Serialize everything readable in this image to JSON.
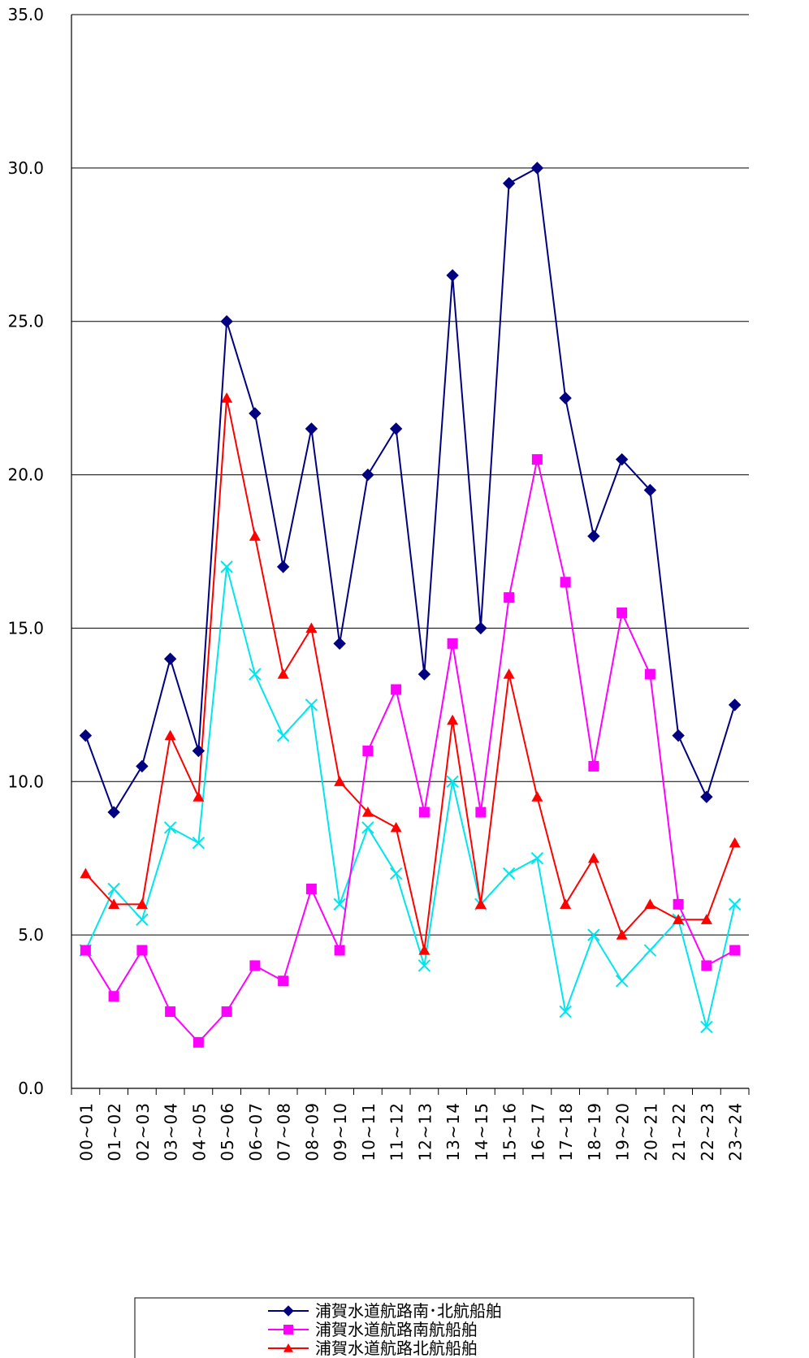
{
  "chart_data": {
    "type": "line",
    "title": "",
    "xlabel": "",
    "ylabel": "",
    "ylim": [
      0,
      35
    ],
    "ytick_step": 5,
    "grid": "horizontal",
    "legend_position": "bottom",
    "categories": [
      "00~01",
      "01~02",
      "02~03",
      "03~04",
      "04~05",
      "05~06",
      "06~07",
      "07~08",
      "08~09",
      "09~10",
      "10~11",
      "11~12",
      "12~13",
      "13~14",
      "14~15",
      "15~16",
      "16~17",
      "17~18",
      "18~19",
      "19~20",
      "20~21",
      "21~22",
      "22~23",
      "23~24"
    ],
    "series": [
      {
        "name": "浦賀水道航路南･北航船舶",
        "color": "#000080",
        "marker": "diamond",
        "values": [
          11.5,
          9.0,
          10.5,
          14.0,
          11.0,
          25.0,
          22.0,
          17.0,
          21.5,
          14.5,
          20.0,
          21.5,
          13.5,
          26.5,
          15.0,
          29.5,
          30.0,
          22.5,
          18.0,
          20.5,
          19.5,
          11.5,
          9.5,
          12.5
        ]
      },
      {
        "name": "浦賀水道航路南航船舶",
        "color": "#ff00ff",
        "marker": "square",
        "values": [
          4.5,
          3.0,
          4.5,
          2.5,
          1.5,
          2.5,
          4.0,
          3.5,
          6.5,
          4.5,
          11.0,
          13.0,
          9.0,
          14.5,
          9.0,
          16.0,
          20.5,
          16.5,
          10.5,
          15.5,
          13.5,
          6.0,
          4.0,
          4.5
        ]
      },
      {
        "name": "浦賀水道航路北航船舶",
        "color": "#ff0000",
        "marker": "triangle",
        "values": [
          7.0,
          6.0,
          6.0,
          11.5,
          9.5,
          22.5,
          18.0,
          13.5,
          15.0,
          10.0,
          9.0,
          8.5,
          4.5,
          12.0,
          6.0,
          13.5,
          9.5,
          6.0,
          7.5,
          5.0,
          6.0,
          5.5,
          5.5,
          8.0
        ]
      },
      {
        "name": "",
        "color": "#00e5ee",
        "marker": "x",
        "values": [
          4.5,
          6.5,
          5.5,
          8.5,
          8.0,
          17.0,
          13.5,
          11.5,
          12.5,
          6.0,
          8.5,
          7.0,
          4.0,
          10.0,
          6.0,
          7.0,
          7.5,
          2.5,
          5.0,
          3.5,
          4.5,
          5.5,
          2.0,
          6.0
        ]
      }
    ]
  }
}
